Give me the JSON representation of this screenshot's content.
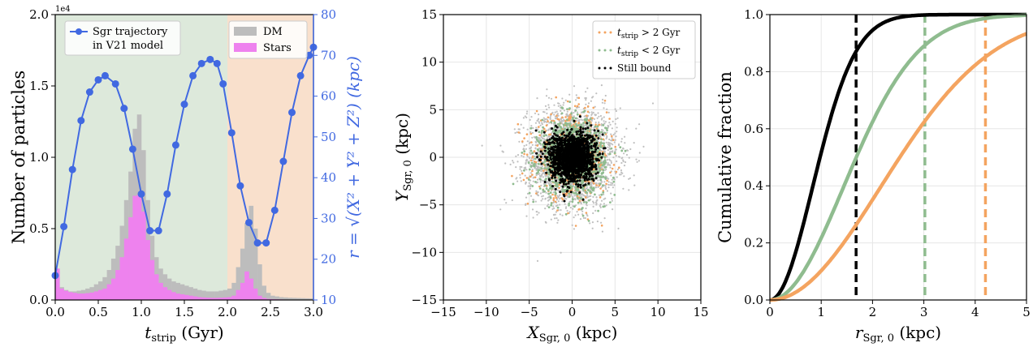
{
  "chart_data": [
    {
      "type": "bar",
      "ylabel": "Number of particles",
      "y2label": "r = √(X² + Y² + Z²) (kpc)",
      "y_offset_text": "1e4",
      "xlabel_main": "t",
      "xlabel_sub": "strip",
      "xlabel_unit": " (Gyr)",
      "xlim": [
        0.0,
        3.0
      ],
      "ylim": [
        0.0,
        20000
      ],
      "y2lim": [
        10,
        80
      ],
      "xticks": [
        "0.0",
        "0.5",
        "1.0",
        "1.5",
        "2.0",
        "2.5",
        "3.0"
      ],
      "yticks": [
        "0.0",
        "0.5",
        "1.0",
        "1.5",
        "2.0"
      ],
      "y2ticks": [
        "10",
        "20",
        "30",
        "40",
        "50",
        "60",
        "70",
        "80"
      ],
      "bin_width": 0.05,
      "bin_edges_start": 0.0,
      "shaded_regions": [
        {
          "from": 0.0,
          "to": 2.0,
          "color": "#dde9db"
        },
        {
          "from": 2.0,
          "to": 3.0,
          "color": "#f9e0cc"
        }
      ],
      "legend": {
        "position": "upper-right",
        "items": [
          {
            "name": "DM",
            "color": "#bdbdbd"
          },
          {
            "name": "Stars",
            "color": "#ee82ee"
          }
        ]
      },
      "legend2": {
        "position": "upper-left",
        "items": [
          {
            "name": "Sgr trajectory",
            "color": "#4169e1"
          },
          {
            "name": "in V21 model",
            "color": "#4169e1"
          }
        ]
      },
      "series": [
        {
          "name": "DM",
          "color": "#bdbdbd",
          "values": [
            2000,
            900,
            700,
            600,
            600,
            650,
            700,
            800,
            900,
            1100,
            1300,
            1600,
            2100,
            2900,
            3800,
            5200,
            7000,
            9000,
            12000,
            13000,
            10500,
            7000,
            4500,
            3000,
            2200,
            1800,
            1500,
            1300,
            1200,
            1100,
            1000,
            900,
            800,
            700,
            650,
            600,
            600,
            600,
            650,
            700,
            800,
            1200,
            2300,
            3600,
            5400,
            6600,
            5000,
            2500,
            1000,
            500,
            300,
            250,
            200,
            180,
            160,
            150,
            140,
            130,
            120,
            110
          ]
        },
        {
          "name": "Stars",
          "color": "#ee82ee",
          "values": [
            2200,
            800,
            650,
            550,
            500,
            450,
            450,
            480,
            520,
            600,
            700,
            800,
            1100,
            1500,
            2100,
            3000,
            4300,
            5800,
            7300,
            7400,
            6200,
            4200,
            2800,
            1800,
            1200,
            900,
            700,
            550,
            450,
            400,
            350,
            300,
            250,
            200,
            180,
            160,
            150,
            150,
            160,
            180,
            200,
            300,
            700,
            1200,
            2000,
            1500,
            800,
            300,
            150,
            80,
            60,
            50,
            40,
            30,
            20,
            20,
            20,
            10,
            10,
            10
          ]
        }
      ],
      "trajectory": {
        "name": "Sgr trajectory in V21 model",
        "color": "#4169e1",
        "t": [
          0.0,
          0.1,
          0.2,
          0.3,
          0.4,
          0.5,
          0.58,
          0.7,
          0.8,
          0.9,
          1.0,
          1.1,
          1.2,
          1.3,
          1.4,
          1.5,
          1.6,
          1.7,
          1.8,
          1.88,
          1.95,
          2.05,
          2.15,
          2.25,
          2.35,
          2.45,
          2.55,
          2.65,
          2.75,
          2.85,
          2.95,
          3.0
        ],
        "r": [
          16,
          28,
          42,
          54,
          61,
          64,
          65,
          63,
          57,
          47,
          36,
          27,
          27,
          36,
          48,
          58,
          65,
          68,
          69,
          68,
          63,
          51,
          38,
          29,
          24,
          24,
          32,
          44,
          56,
          65,
          70,
          72
        ]
      }
    },
    {
      "type": "scatter",
      "xlabel_main": "X",
      "ylabel_main": "Y",
      "label_sub": "Sgr, 0",
      "label_unit": " (kpc)",
      "xlim": [
        -15,
        15
      ],
      "ylim": [
        -15,
        15
      ],
      "xticks": [
        "−15",
        "−10",
        "−5",
        "0",
        "5",
        "10",
        "15"
      ],
      "yticks": [
        "−15",
        "−10",
        "−5",
        "0",
        "5",
        "10",
        "15"
      ],
      "grid": true,
      "legend": {
        "position": "upper-right"
      },
      "series": [
        {
          "name_main": "t",
          "name_sub": "strip",
          "name_rest": " > 2 Gyr",
          "color": "#f4a460",
          "sigma": 2.1
        },
        {
          "name_main": "t",
          "name_sub": "strip",
          "name_rest": " < 2 Gyr",
          "color": "#8fbc8f",
          "sigma": 1.9
        },
        {
          "name": "Still bound",
          "color": "#000000",
          "sigma": 1.3
        },
        {
          "name": "DM",
          "color": "#c0c0c0",
          "sigma": 2.6
        }
      ]
    },
    {
      "type": "line",
      "ylabel": "Cumulative fraction",
      "xlabel_main": "r",
      "xlabel_sub": "Sgr, 0",
      "xlabel_unit": " (kpc)",
      "xlim": [
        0,
        5
      ],
      "ylim": [
        0.0,
        1.0
      ],
      "xticks": [
        "0",
        "1",
        "2",
        "3",
        "4",
        "5"
      ],
      "yticks": [
        "0.0",
        "0.2",
        "0.4",
        "0.6",
        "0.8",
        "1.0"
      ],
      "grid": true,
      "series": [
        {
          "name": "Still bound",
          "color": "#000000",
          "sigma": 0.83
        },
        {
          "name": "t_strip < 2 Gyr",
          "color": "#8fbc8f",
          "sigma": 1.43
        },
        {
          "name": "t_strip > 2 Gyr",
          "color": "#f4a460",
          "sigma": 2.15
        }
      ],
      "vlines": [
        {
          "x": 1.68,
          "color": "#000000"
        },
        {
          "x": 3.02,
          "color": "#8fbc8f"
        },
        {
          "x": 4.2,
          "color": "#f4a460"
        }
      ]
    }
  ]
}
